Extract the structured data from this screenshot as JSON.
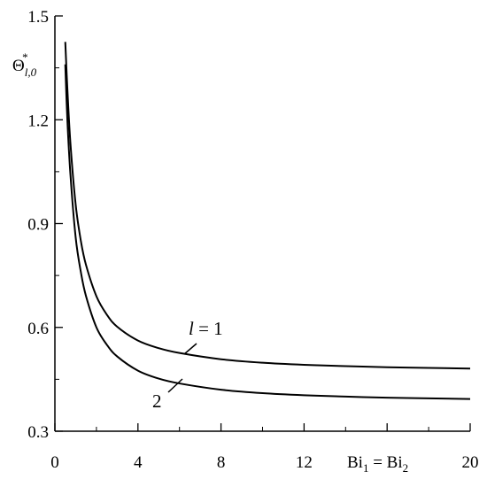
{
  "chart_data": {
    "type": "line",
    "title": "",
    "xlabel": {
      "main": "Bi",
      "sub1": "1",
      "eq": " = Bi",
      "sub2": "2"
    },
    "ylabel": {
      "main": "Θ",
      "sub": "l,0",
      "sup": "*"
    },
    "xlim": [
      0,
      20
    ],
    "ylim": [
      0.3,
      1.5
    ],
    "x_ticks": [
      0,
      4,
      8,
      12,
      20
    ],
    "x_tick_labels": [
      "0",
      "4",
      "8",
      "12",
      "20"
    ],
    "y_ticks": [
      0.3,
      0.6,
      0.9,
      1.2,
      1.5
    ],
    "y_tick_labels": [
      "0.3",
      "0.6",
      "0.9",
      "1.2",
      "1.5"
    ],
    "grid": false,
    "series": [
      {
        "name": "l = 1",
        "label_parts": {
          "italic": "l",
          "rest": " = 1"
        },
        "x": [
          0.5,
          0.6,
          0.75,
          1.0,
          1.25,
          1.5,
          2.0,
          2.5,
          3.0,
          4.0,
          5.0,
          6.0,
          8.0,
          10.0,
          12.0,
          14.0,
          16.0,
          18.0,
          20.0
        ],
        "y": [
          1.425,
          1.29,
          1.13,
          0.955,
          0.85,
          0.78,
          0.69,
          0.637,
          0.602,
          0.562,
          0.54,
          0.526,
          0.508,
          0.498,
          0.492,
          0.488,
          0.485,
          0.483,
          0.481
        ]
      },
      {
        "name": "2",
        "label_parts": {
          "italic": "",
          "rest": "2"
        },
        "x": [
          0.5,
          0.6,
          0.75,
          1.0,
          1.25,
          1.5,
          2.0,
          2.5,
          3.0,
          4.0,
          5.0,
          6.0,
          8.0,
          10.0,
          12.0,
          14.0,
          16.0,
          18.0,
          20.0
        ],
        "y": [
          1.36,
          1.2,
          1.04,
          0.86,
          0.76,
          0.69,
          0.6,
          0.55,
          0.516,
          0.475,
          0.452,
          0.438,
          0.42,
          0.41,
          0.404,
          0.4,
          0.397,
          0.395,
          0.393
        ]
      }
    ]
  }
}
